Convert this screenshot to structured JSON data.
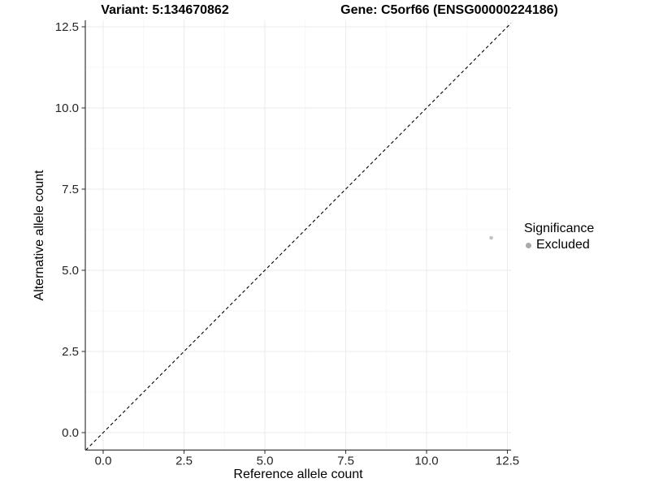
{
  "chart_data": {
    "type": "scatter",
    "title_left": "Variant: 5:134670862",
    "title_right": "Gene: C5orf66 (ENSG00000224186)",
    "xlabel": "Reference allele count",
    "ylabel": "Alternative allele count",
    "xlim": [
      -0.55,
      12.6
    ],
    "ylim": [
      -0.54,
      12.7
    ],
    "x_ticks": [
      0,
      2.5,
      5,
      7.5,
      10,
      12.5
    ],
    "y_ticks": [
      0,
      2.5,
      5,
      7.5,
      10,
      12.5
    ],
    "x_tick_labels": [
      "0.0",
      "2.5",
      "5.0",
      "7.5",
      "10.0",
      "12.5"
    ],
    "y_tick_labels": [
      "0.0",
      "2.5",
      "5.0",
      "7.5",
      "10.0",
      "12.5"
    ],
    "grid": "major+minor",
    "reference_line": {
      "type": "identity-diagonal",
      "style": "dashed",
      "color": "#000000"
    },
    "series": [
      {
        "name": "Excluded",
        "color": "#c2c2c2",
        "points": [
          {
            "x": 12,
            "y": 6
          }
        ]
      }
    ],
    "legend": {
      "title": "Significance",
      "position": "right",
      "items": [
        {
          "label": "Excluded",
          "color": "#a9a9a9"
        }
      ]
    }
  },
  "colors": {
    "background": "#ffffff",
    "grid_major": "#ebebeb",
    "grid_minor": "#f5f5f5",
    "axis": "#3a3a3a",
    "tick_label": "#262626",
    "title": "#000000",
    "diagonal": "#000000"
  }
}
